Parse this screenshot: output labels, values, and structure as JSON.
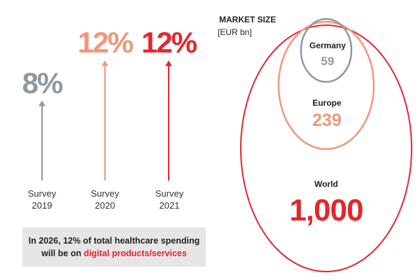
{
  "chart_data": [
    {
      "type": "bar",
      "categories": [
        "Survey\n2019",
        "Survey\n2020",
        "Survey\n2021"
      ],
      "category_lines": [
        [
          "Survey",
          "2019"
        ],
        [
          "Survey",
          "2020"
        ],
        [
          "Survey",
          "2021"
        ]
      ],
      "values": [
        8,
        12,
        12
      ],
      "value_labels": [
        "8%",
        "12%",
        "12%"
      ],
      "unit": "%",
      "colors": [
        "#8f989f",
        "#f0977a",
        "#e3262e"
      ]
    },
    {
      "type": "bubble",
      "title": "MARKET SIZE",
      "unit_label": "[EUR bn]",
      "series": [
        {
          "name": "World",
          "value": 1000,
          "label": "1,000",
          "color": "#e3262e"
        },
        {
          "name": "Europe",
          "value": 239,
          "label": "239",
          "color": "#f0977a"
        },
        {
          "name": "Germany",
          "value": 59,
          "label": "59",
          "color": "#8f989f"
        }
      ]
    }
  ],
  "note": {
    "line1": "In 2026, 12% of total healthcare spending",
    "line2_prefix": "will be on ",
    "line2_highlight": "digital products/services"
  }
}
